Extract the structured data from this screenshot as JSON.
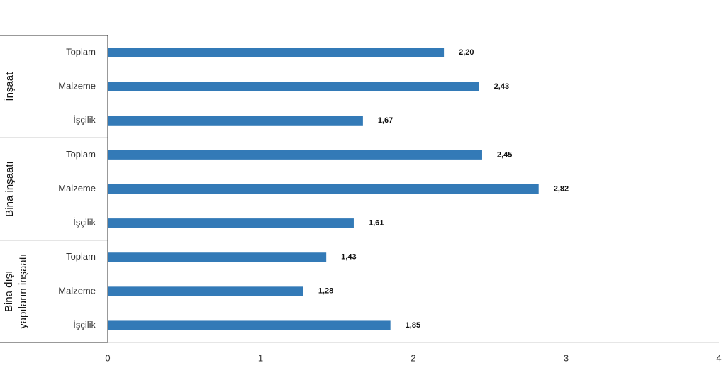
{
  "chart_data": {
    "type": "bar",
    "color": "#337ab7",
    "groups": [
      {
        "label": [
          "İnşaat"
        ],
        "categories": [
          "Toplam",
          "Malzeme",
          "İşçilik"
        ],
        "values": [
          2.2,
          2.43,
          1.67
        ],
        "value_labels": [
          "2,20",
          "2,43",
          "1,67"
        ]
      },
      {
        "label": [
          "Bina inşaatı"
        ],
        "categories": [
          "Toplam",
          "Malzeme",
          "İşçilik"
        ],
        "values": [
          2.45,
          2.82,
          1.61
        ],
        "value_labels": [
          "2,45",
          "2,82",
          "1,61"
        ]
      },
      {
        "label": [
          "Bina dışı",
          "yapıların inşaatı"
        ],
        "categories": [
          "Toplam",
          "Malzeme",
          "İşçilik"
        ],
        "values": [
          1.43,
          1.28,
          1.85
        ],
        "value_labels": [
          "1,43",
          "1,28",
          "1,85"
        ]
      }
    ],
    "xlim": [
      0,
      4
    ],
    "xticks": [
      0,
      1,
      2,
      3,
      4
    ]
  }
}
